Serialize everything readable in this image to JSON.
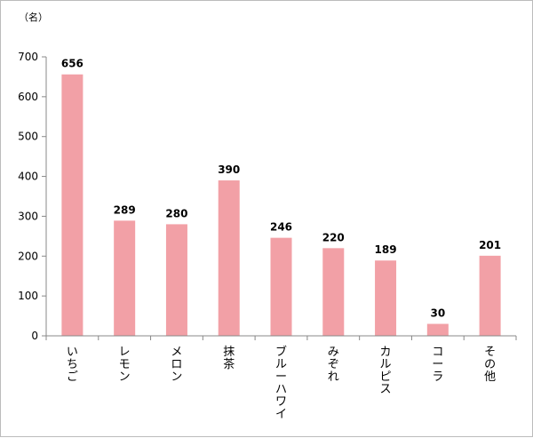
{
  "chart_data": {
    "type": "bar",
    "unit_label": "（名）",
    "categories": [
      "いちご",
      "レモン",
      "メロン",
      "抹茶",
      "ブルーハワイ",
      "みぞれ",
      "カルピス",
      "コーラ",
      "その他"
    ],
    "values": [
      656,
      289,
      280,
      390,
      246,
      220,
      189,
      30,
      201
    ],
    "ylim": [
      0,
      700
    ],
    "yticks": [
      0,
      100,
      200,
      300,
      400,
      500,
      600,
      700
    ],
    "bar_color": "#f2a0a6",
    "grid": false,
    "legend": "none"
  }
}
